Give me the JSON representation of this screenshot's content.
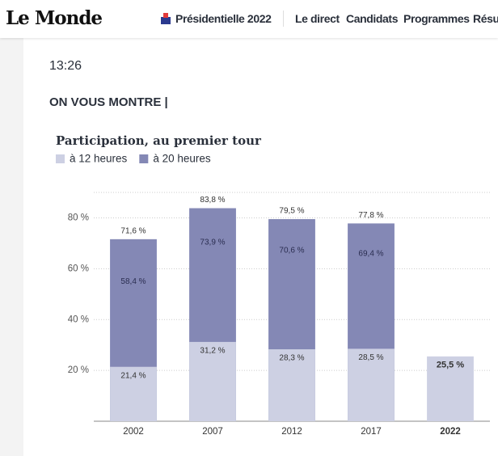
{
  "header": {
    "logo": "Le Monde",
    "nav": [
      "Présidentielle 2022",
      "Le direct",
      "Candidats",
      "Programmes",
      "Résultats"
    ]
  },
  "post": {
    "time": "13:26",
    "heading": "ON VOUS MONTRE |"
  },
  "chart_data": {
    "type": "bar",
    "title": "Participation, au premier tour",
    "categories": [
      "2002",
      "2007",
      "2012",
      "2017",
      "2022"
    ],
    "series": [
      {
        "name": "à 12 heures",
        "color": "#cdd0e3",
        "values": [
          21.4,
          31.2,
          28.3,
          28.5,
          25.5
        ],
        "value_labels": [
          "21,4 %",
          "31,2 %",
          "28,3 %",
          "28,5 %",
          "25,5 %"
        ]
      },
      {
        "name": "à 20 heures",
        "color": "#8488b5",
        "values": [
          71.6,
          83.8,
          79.5,
          77.8,
          null
        ],
        "value_labels": [
          "71,6 %",
          "83,8 %",
          "79,5 %",
          "77,8 %",
          null
        ]
      }
    ],
    "annotations": [
      {
        "value": 58.4,
        "label": "58,4 %"
      },
      {
        "value": 73.9,
        "label": "73,9 %"
      },
      {
        "value": 70.6,
        "label": "70,6 %"
      },
      {
        "value": 69.4,
        "label": "69,4 %"
      }
    ],
    "ylim": [
      0,
      90
    ],
    "yticks": [
      {
        "value": 20,
        "label": "20 %"
      },
      {
        "value": 40,
        "label": "40 %"
      },
      {
        "value": 60,
        "label": "60 %"
      },
      {
        "value": 80,
        "label": "80 %"
      }
    ],
    "grid": true
  }
}
